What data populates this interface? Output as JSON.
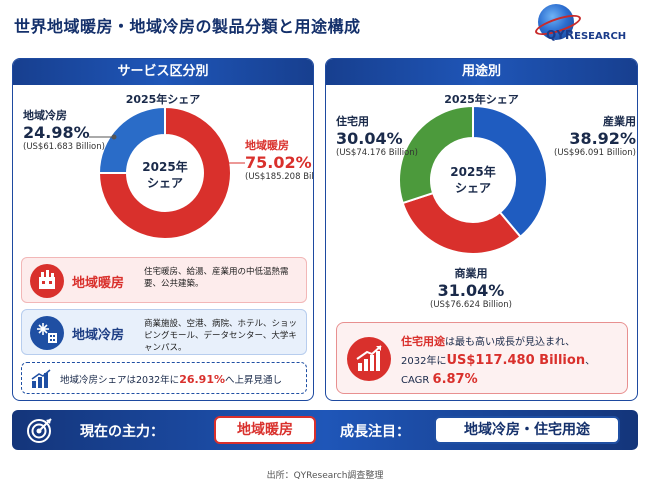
{
  "header": {
    "title": "世界地域暖房・地域冷房の製品分類と用途構成",
    "logo_text_q": "QYR",
    "logo_text_rest": "ESEARCH"
  },
  "left_panel": {
    "title": "サービス区分別",
    "subtitle": "2025年シェア",
    "center_line1": "2025年",
    "center_line2": "シェア",
    "heating_box": {
      "name": "地域暖房",
      "desc": "住宅暖房、給湯、産業用の中低温熱需要、公共建築。"
    },
    "cooling_box": {
      "name": "地域冷房",
      "desc": "商業施設、空港、病院、ホテル、ショッピングモール、データセンター、大学キャンパス。"
    },
    "note": {
      "prefix": "地域冷房シェアは2032年に",
      "value": "26.91%",
      "suffix": "へ上昇見通し"
    }
  },
  "right_panel": {
    "title": "用途別",
    "subtitle": "2025年シェア",
    "center_line1": "2025年",
    "center_line2": "シェア",
    "growth": {
      "hl": "住宅用途",
      "line1_rest": "は最も高い成長が見込まれ、",
      "line2_prefix": "2032年に",
      "line2_value": "US$117.480 Billion",
      "line2_suffix": "、",
      "line3_prefix": "CAGR ",
      "line3_value": "6.87%"
    }
  },
  "chart_data": [
    {
      "type": "pie",
      "title": "2025年シェア",
      "categories": [
        "地域暖房",
        "地域冷房"
      ],
      "values": [
        75.02,
        24.98
      ],
      "percent_labels": [
        "75.02%",
        "24.98%"
      ],
      "amounts": [
        "(US$185.208 Billion)",
        "(US$61.683 Billion)"
      ],
      "colors": [
        "#d9302c",
        "#2a6cc8"
      ]
    },
    {
      "type": "pie",
      "title": "2025年シェア",
      "categories": [
        "産業用",
        "商業用",
        "住宅用"
      ],
      "values": [
        38.92,
        31.04,
        30.04
      ],
      "percent_labels": [
        "38.92%",
        "31.04%",
        "30.04%"
      ],
      "amounts": [
        "(US$96.091 Billion)",
        "(US$76.624 Billion)",
        "(US$74.176 Billion)"
      ],
      "colors": [
        "#1f5cc0",
        "#d9302c",
        "#4c9a3c"
      ]
    }
  ],
  "bottom": {
    "label1": "現在の主力：",
    "pill1": "地域暖房",
    "label2": "成長注目：",
    "pill2": "地域冷房・住宅用途"
  },
  "source": "出所：QYResearch調査整理"
}
